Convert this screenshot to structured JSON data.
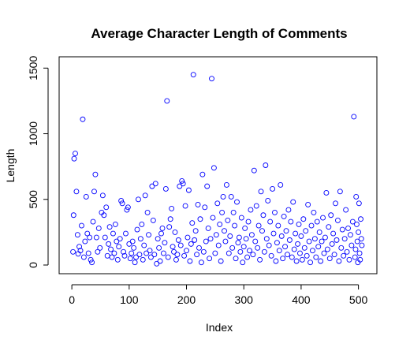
{
  "chart_data": {
    "type": "scatter",
    "title": "Average Character Length of Comments",
    "xlabel": "Index",
    "ylabel": "Length",
    "xlim": [
      0,
      510
    ],
    "ylim": [
      0,
      1520
    ],
    "x_ticks": [
      0,
      100,
      200,
      300,
      400,
      500
    ],
    "y_ticks": [
      0,
      500,
      1000,
      1500
    ],
    "x_tick_labels": [
      "0",
      "100",
      "200",
      "300",
      "400",
      "500"
    ],
    "y_tick_labels": [
      "0",
      "500",
      "1000",
      "1500"
    ],
    "grid": false,
    "point_color": "#0000FF",
    "points": [
      [
        2,
        100
      ],
      [
        3,
        380
      ],
      [
        4,
        810
      ],
      [
        6,
        850
      ],
      [
        8,
        560
      ],
      [
        10,
        230
      ],
      [
        11,
        85
      ],
      [
        13,
        140
      ],
      [
        15,
        110
      ],
      [
        17,
        300
      ],
      [
        19,
        1110
      ],
      [
        21,
        60
      ],
      [
        23,
        180
      ],
      [
        25,
        520
      ],
      [
        27,
        240
      ],
      [
        29,
        90
      ],
      [
        31,
        210
      ],
      [
        33,
        40
      ],
      [
        35,
        20
      ],
      [
        37,
        330
      ],
      [
        39,
        560
      ],
      [
        41,
        690
      ],
      [
        43,
        210
      ],
      [
        45,
        100
      ],
      [
        47,
        280
      ],
      [
        49,
        130
      ],
      [
        52,
        400
      ],
      [
        54,
        530
      ],
      [
        56,
        380
      ],
      [
        58,
        210
      ],
      [
        60,
        440
      ],
      [
        62,
        70
      ],
      [
        64,
        160
      ],
      [
        66,
        290
      ],
      [
        68,
        120
      ],
      [
        70,
        60
      ],
      [
        72,
        240
      ],
      [
        74,
        90
      ],
      [
        76,
        310
      ],
      [
        78,
        180
      ],
      [
        80,
        40
      ],
      [
        82,
        140
      ],
      [
        84,
        200
      ],
      [
        86,
        490
      ],
      [
        88,
        470
      ],
      [
        90,
        100
      ],
      [
        92,
        70
      ],
      [
        94,
        240
      ],
      [
        96,
        420
      ],
      [
        98,
        440
      ],
      [
        100,
        160
      ],
      [
        102,
        50
      ],
      [
        104,
        90
      ],
      [
        106,
        180
      ],
      [
        108,
        130
      ],
      [
        110,
        20
      ],
      [
        112,
        60
      ],
      [
        114,
        270
      ],
      [
        116,
        500
      ],
      [
        118,
        80
      ],
      [
        120,
        200
      ],
      [
        122,
        310
      ],
      [
        124,
        40
      ],
      [
        126,
        150
      ],
      [
        128,
        530
      ],
      [
        130,
        90
      ],
      [
        132,
        400
      ],
      [
        134,
        230
      ],
      [
        136,
        110
      ],
      [
        138,
        60
      ],
      [
        140,
        600
      ],
      [
        142,
        340
      ],
      [
        144,
        80
      ],
      [
        146,
        620
      ],
      [
        148,
        10
      ],
      [
        150,
        200
      ],
      [
        152,
        130
      ],
      [
        154,
        30
      ],
      [
        156,
        240
      ],
      [
        158,
        280
      ],
      [
        160,
        90
      ],
      [
        162,
        170
      ],
      [
        164,
        580
      ],
      [
        166,
        1250
      ],
      [
        168,
        60
      ],
      [
        170,
        290
      ],
      [
        172,
        350
      ],
      [
        174,
        430
      ],
      [
        176,
        140
      ],
      [
        178,
        100
      ],
      [
        180,
        250
      ],
      [
        182,
        40
      ],
      [
        184,
        80
      ],
      [
        186,
        190
      ],
      [
        188,
        600
      ],
      [
        190,
        150
      ],
      [
        192,
        640
      ],
      [
        194,
        620
      ],
      [
        196,
        70
      ],
      [
        198,
        450
      ],
      [
        200,
        110
      ],
      [
        202,
        210
      ],
      [
        204,
        570
      ],
      [
        206,
        30
      ],
      [
        208,
        160
      ],
      [
        210,
        320
      ],
      [
        212,
        1450
      ],
      [
        214,
        190
      ],
      [
        216,
        260
      ],
      [
        218,
        80
      ],
      [
        220,
        460
      ],
      [
        222,
        130
      ],
      [
        224,
        350
      ],
      [
        226,
        20
      ],
      [
        228,
        690
      ],
      [
        230,
        100
      ],
      [
        232,
        440
      ],
      [
        234,
        180
      ],
      [
        236,
        600
      ],
      [
        238,
        280
      ],
      [
        240,
        50
      ],
      [
        242,
        200
      ],
      [
        244,
        1420
      ],
      [
        246,
        360
      ],
      [
        248,
        740
      ],
      [
        250,
        90
      ],
      [
        252,
        230
      ],
      [
        254,
        470
      ],
      [
        256,
        150
      ],
      [
        258,
        310
      ],
      [
        260,
        30
      ],
      [
        262,
        400
      ],
      [
        264,
        520
      ],
      [
        266,
        260
      ],
      [
        268,
        180
      ],
      [
        270,
        610
      ],
      [
        272,
        340
      ],
      [
        274,
        90
      ],
      [
        276,
        220
      ],
      [
        278,
        520
      ],
      [
        280,
        130
      ],
      [
        282,
        400
      ],
      [
        284,
        300
      ],
      [
        286,
        50
      ],
      [
        288,
        480
      ],
      [
        290,
        170
      ],
      [
        292,
        210
      ],
      [
        294,
        100
      ],
      [
        296,
        360
      ],
      [
        298,
        20
      ],
      [
        300,
        140
      ],
      [
        302,
        280
      ],
      [
        304,
        200
      ],
      [
        306,
        60
      ],
      [
        308,
        330
      ],
      [
        310,
        110
      ],
      [
        312,
        420
      ],
      [
        314,
        230
      ],
      [
        316,
        80
      ],
      [
        318,
        720
      ],
      [
        320,
        180
      ],
      [
        322,
        450
      ],
      [
        324,
        130
      ],
      [
        326,
        300
      ],
      [
        328,
        40
      ],
      [
        330,
        560
      ],
      [
        332,
        260
      ],
      [
        334,
        380
      ],
      [
        336,
        100
      ],
      [
        338,
        760
      ],
      [
        340,
        200
      ],
      [
        342,
        490
      ],
      [
        344,
        150
      ],
      [
        346,
        330
      ],
      [
        348,
        70
      ],
      [
        350,
        580
      ],
      [
        352,
        240
      ],
      [
        354,
        400
      ],
      [
        356,
        30
      ],
      [
        358,
        170
      ],
      [
        360,
        300
      ],
      [
        362,
        110
      ],
      [
        364,
        610
      ],
      [
        366,
        220
      ],
      [
        368,
        50
      ],
      [
        370,
        370
      ],
      [
        372,
        140
      ],
      [
        374,
        260
      ],
      [
        376,
        80
      ],
      [
        378,
        420
      ],
      [
        380,
        190
      ],
      [
        382,
        330
      ],
      [
        384,
        60
      ],
      [
        386,
        480
      ],
      [
        388,
        120
      ],
      [
        390,
        240
      ],
      [
        392,
        30
      ],
      [
        394,
        160
      ],
      [
        396,
        310
      ],
      [
        398,
        90
      ],
      [
        400,
        220
      ],
      [
        402,
        40
      ],
      [
        404,
        350
      ],
      [
        406,
        130
      ],
      [
        408,
        260
      ],
      [
        410,
        70
      ],
      [
        412,
        460
      ],
      [
        414,
        180
      ],
      [
        416,
        20
      ],
      [
        418,
        300
      ],
      [
        420,
        110
      ],
      [
        422,
        400
      ],
      [
        424,
        200
      ],
      [
        426,
        60
      ],
      [
        428,
        330
      ],
      [
        430,
        140
      ],
      [
        432,
        250
      ],
      [
        434,
        30
      ],
      [
        436,
        180
      ],
      [
        438,
        360
      ],
      [
        440,
        90
      ],
      [
        442,
        210
      ],
      [
        444,
        550
      ],
      [
        446,
        120
      ],
      [
        448,
        290
      ],
      [
        450,
        50
      ],
      [
        452,
        380
      ],
      [
        454,
        160
      ],
      [
        456,
        240
      ],
      [
        458,
        80
      ],
      [
        460,
        470
      ],
      [
        462,
        190
      ],
      [
        464,
        340
      ],
      [
        466,
        30
      ],
      [
        468,
        560
      ],
      [
        470,
        130
      ],
      [
        472,
        270
      ],
      [
        474,
        70
      ],
      [
        476,
        200
      ],
      [
        478,
        420
      ],
      [
        480,
        100
      ],
      [
        482,
        280
      ],
      [
        484,
        40
      ],
      [
        486,
        230
      ],
      [
        488,
        150
      ],
      [
        490,
        330
      ],
      [
        492,
        1130
      ],
      [
        494,
        60
      ],
      [
        496,
        520
      ],
      [
        498,
        180
      ],
      [
        500,
        250
      ],
      [
        502,
        90
      ],
      [
        504,
        350
      ],
      [
        506,
        150
      ],
      [
        505,
        200
      ],
      [
        503,
        40
      ],
      [
        501,
        470
      ],
      [
        499,
        20
      ],
      [
        497,
        310
      ],
      [
        495,
        120
      ]
    ]
  }
}
